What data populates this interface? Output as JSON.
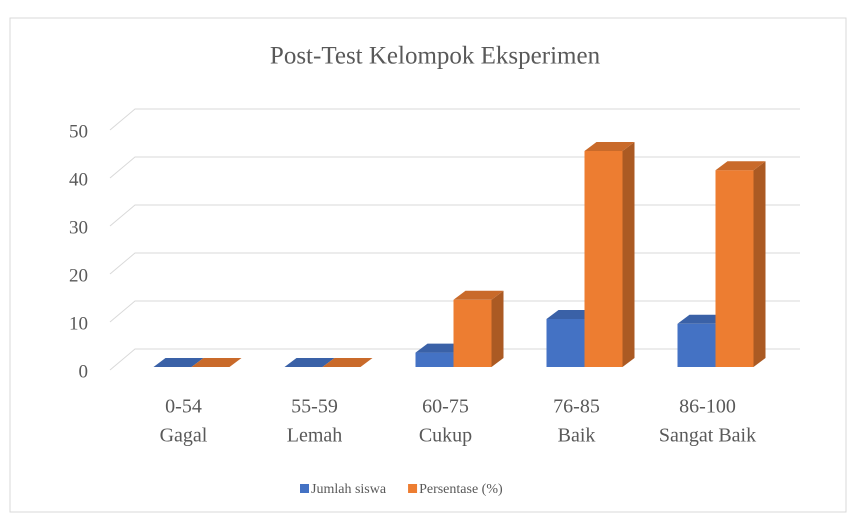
{
  "chart_data": {
    "type": "bar3d",
    "title": "Post-Test Kelompok Eksperimen",
    "categories": [
      [
        "0-54",
        "Gagal"
      ],
      [
        "55-59",
        "Lemah"
      ],
      [
        "60-75",
        "Cukup"
      ],
      [
        "76-85",
        "Baik"
      ],
      [
        "86-100",
        "Sangat Baik"
      ]
    ],
    "series": [
      {
        "name": "Jumlah siswa",
        "color": "#4472c4",
        "values": [
          0,
          0,
          3,
          10,
          9
        ]
      },
      {
        "name": "Persentase (%)",
        "color": "#ed7d31",
        "values": [
          0,
          0,
          14,
          45,
          41
        ]
      }
    ],
    "ylim": [
      0,
      50
    ],
    "yticks": [
      0,
      10,
      20,
      30,
      40,
      50
    ],
    "grid": true,
    "legend": "bottom"
  }
}
